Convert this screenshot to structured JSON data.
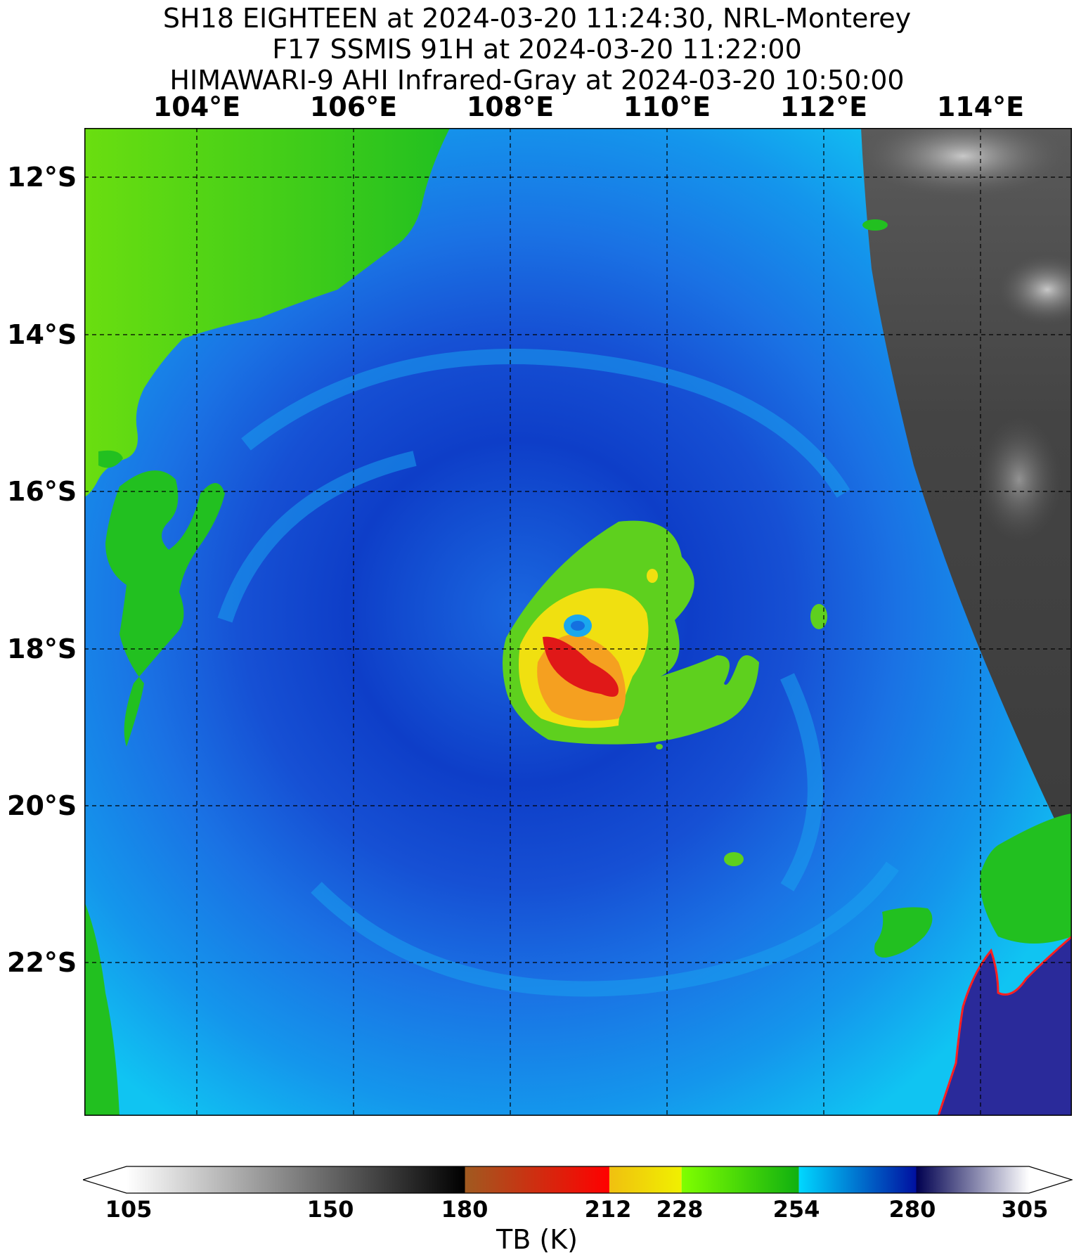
{
  "title": {
    "line1": "SH18 EIGHTEEN at 2024-03-20 11:24:30, NRL-Monterey",
    "line2": "F17 SSMIS 91H at 2024-03-20 11:22:00",
    "line3": "HIMAWARI-9 AHI Infrared-Gray at 2024-03-20 10:50:00"
  },
  "longitude_labels": [
    "104°E",
    "106°E",
    "108°E",
    "110°E",
    "112°E",
    "114°E"
  ],
  "latitude_labels": [
    "12°S",
    "14°S",
    "16°S",
    "18°S",
    "20°S",
    "22°S"
  ],
  "map": {
    "projection": "plate-carree",
    "lon_range_deg": [
      102.6,
      115.2
    ],
    "lat_range_deg": [
      -23.9,
      -11.4
    ],
    "gridlines": "dashed black",
    "background_ir": "HIMAWARI-9 AHI Infrared-Gray",
    "overlay": "F17 SSMIS 91H",
    "storm_center": {
      "lon": 108.8,
      "lat": -18.3
    },
    "colors": {
      "ocean_light": "#12c8f0",
      "ocean_mid": "#1470e0",
      "ocean_deep": "#0c3ec6",
      "land_green": "#22c020",
      "land_bright": "#70e010",
      "convection_yellow": "#f0e010",
      "convection_orange": "#f5a020",
      "convection_red": "#e01818",
      "ir_gray": "#4a4a4a",
      "coast_outline": "#ff2020",
      "deep_navy": "#2a2a9a"
    }
  },
  "colorbar": {
    "label": "TB (K)",
    "ticks": [
      "105",
      "150",
      "180",
      "212",
      "228",
      "254",
      "280",
      "305"
    ],
    "tick_values": [
      105,
      150,
      180,
      212,
      228,
      254,
      280,
      305
    ],
    "range": [
      105,
      305
    ],
    "segments": [
      {
        "from": 105,
        "to": 180,
        "colors": [
          "#ffffff",
          "#000000"
        ]
      },
      {
        "from": 180,
        "to": 212,
        "colors": [
          "#a05a20",
          "#ff0000"
        ]
      },
      {
        "from": 212,
        "to": 228,
        "colors": [
          "#f0c010",
          "#f0f000"
        ]
      },
      {
        "from": 228,
        "to": 254,
        "colors": [
          "#80ff00",
          "#10b010"
        ]
      },
      {
        "from": 254,
        "to": 280,
        "colors": [
          "#00d8ff",
          "#0010a0"
        ]
      },
      {
        "from": 280,
        "to": 305,
        "colors": [
          "#000050",
          "#ffffff"
        ]
      }
    ]
  }
}
